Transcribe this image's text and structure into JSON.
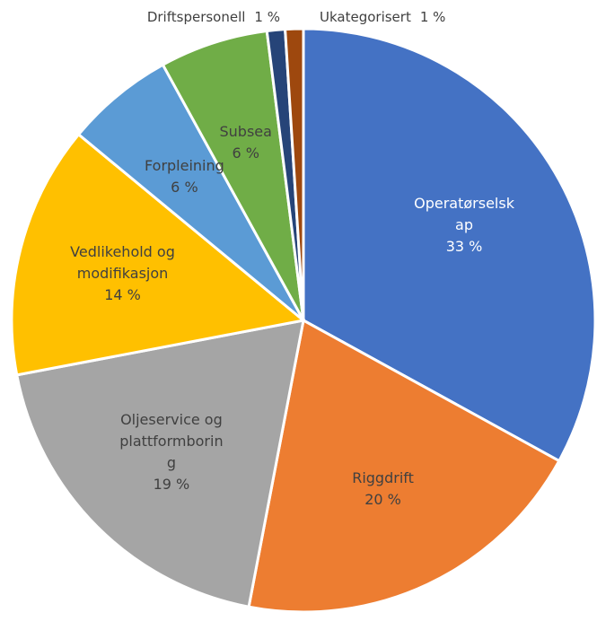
{
  "chart_data": {
    "type": "pie",
    "categories": [
      "Operatørselskap",
      "Riggdrift",
      "Oljeservice og plattformboring",
      "Vedlikehold og modifikasjon",
      "Forpleining",
      "Subsea",
      "Driftspersonell",
      "Ukategorisert"
    ],
    "values": [
      33,
      20,
      19,
      14,
      6,
      6,
      1,
      1
    ],
    "value_labels": [
      "33 %",
      "20 %",
      "19 %",
      "14 %",
      "6 %",
      "6 %",
      "1 %",
      "1 %"
    ],
    "colors": [
      "#4472c4",
      "#ed7d31",
      "#a5a5a5",
      "#ffc000",
      "#5b9bd5",
      "#70ad47",
      "#264478",
      "#9e480e"
    ]
  }
}
